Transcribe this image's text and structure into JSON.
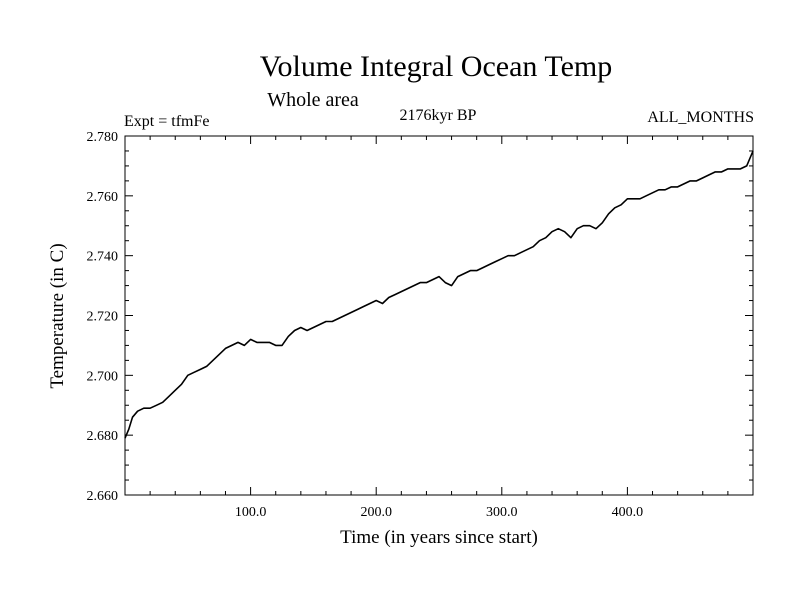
{
  "chart_data": {
    "type": "line",
    "title": "Volume Integral Ocean Temp",
    "subtitle": "Whole area",
    "expt_label": "Expt = tfmFe",
    "period_label": "2176kyr BP",
    "months_label": "ALL_MONTHS",
    "xlabel": "Time (in years since start)",
    "ylabel": "Temperature (in C)",
    "xlim": [
      0,
      500
    ],
    "ylim": [
      2.66,
      2.78
    ],
    "xticks": [
      100,
      200,
      300,
      400
    ],
    "xtick_labels": [
      "100.0",
      "200.0",
      "300.0",
      "400.0"
    ],
    "yticks": [
      2.66,
      2.68,
      2.7,
      2.72,
      2.74,
      2.76,
      2.78
    ],
    "ytick_labels": [
      "2.660",
      "2.680",
      "2.700",
      "2.720",
      "2.740",
      "2.760",
      "2.780"
    ],
    "line_color": "#000000",
    "series": [
      {
        "name": "Volume Integral Ocean Temp",
        "x": [
          0,
          3,
          6,
          10,
          15,
          20,
          25,
          30,
          35,
          40,
          45,
          50,
          55,
          60,
          65,
          70,
          75,
          80,
          85,
          90,
          95,
          100,
          105,
          110,
          115,
          120,
          125,
          130,
          135,
          140,
          145,
          150,
          155,
          160,
          165,
          170,
          175,
          180,
          185,
          190,
          195,
          200,
          205,
          210,
          215,
          220,
          225,
          230,
          235,
          240,
          245,
          250,
          255,
          260,
          265,
          270,
          275,
          280,
          285,
          290,
          295,
          300,
          305,
          310,
          315,
          320,
          325,
          330,
          335,
          340,
          345,
          350,
          355,
          360,
          365,
          370,
          375,
          380,
          385,
          390,
          395,
          400,
          405,
          410,
          415,
          420,
          425,
          430,
          435,
          440,
          445,
          450,
          455,
          460,
          465,
          470,
          475,
          480,
          485,
          490,
          495,
          500
        ],
        "values": [
          2.679,
          2.682,
          2.686,
          2.688,
          2.689,
          2.689,
          2.69,
          2.691,
          2.693,
          2.695,
          2.697,
          2.7,
          2.701,
          2.702,
          2.703,
          2.705,
          2.707,
          2.709,
          2.71,
          2.711,
          2.71,
          2.712,
          2.711,
          2.711,
          2.711,
          2.71,
          2.71,
          2.713,
          2.715,
          2.716,
          2.715,
          2.716,
          2.717,
          2.718,
          2.718,
          2.719,
          2.72,
          2.721,
          2.722,
          2.723,
          2.724,
          2.725,
          2.724,
          2.726,
          2.727,
          2.728,
          2.729,
          2.73,
          2.731,
          2.731,
          2.732,
          2.733,
          2.731,
          2.73,
          2.733,
          2.734,
          2.735,
          2.735,
          2.736,
          2.737,
          2.738,
          2.739,
          2.74,
          2.74,
          2.741,
          2.742,
          2.743,
          2.745,
          2.746,
          2.748,
          2.749,
          2.748,
          2.746,
          2.749,
          2.75,
          2.75,
          2.749,
          2.751,
          2.754,
          2.756,
          2.757,
          2.759,
          2.759,
          2.759,
          2.76,
          2.761,
          2.762,
          2.762,
          2.763,
          2.763,
          2.764,
          2.765,
          2.765,
          2.766,
          2.767,
          2.768,
          2.768,
          2.769,
          2.769,
          2.769,
          2.77,
          2.775
        ]
      }
    ]
  }
}
